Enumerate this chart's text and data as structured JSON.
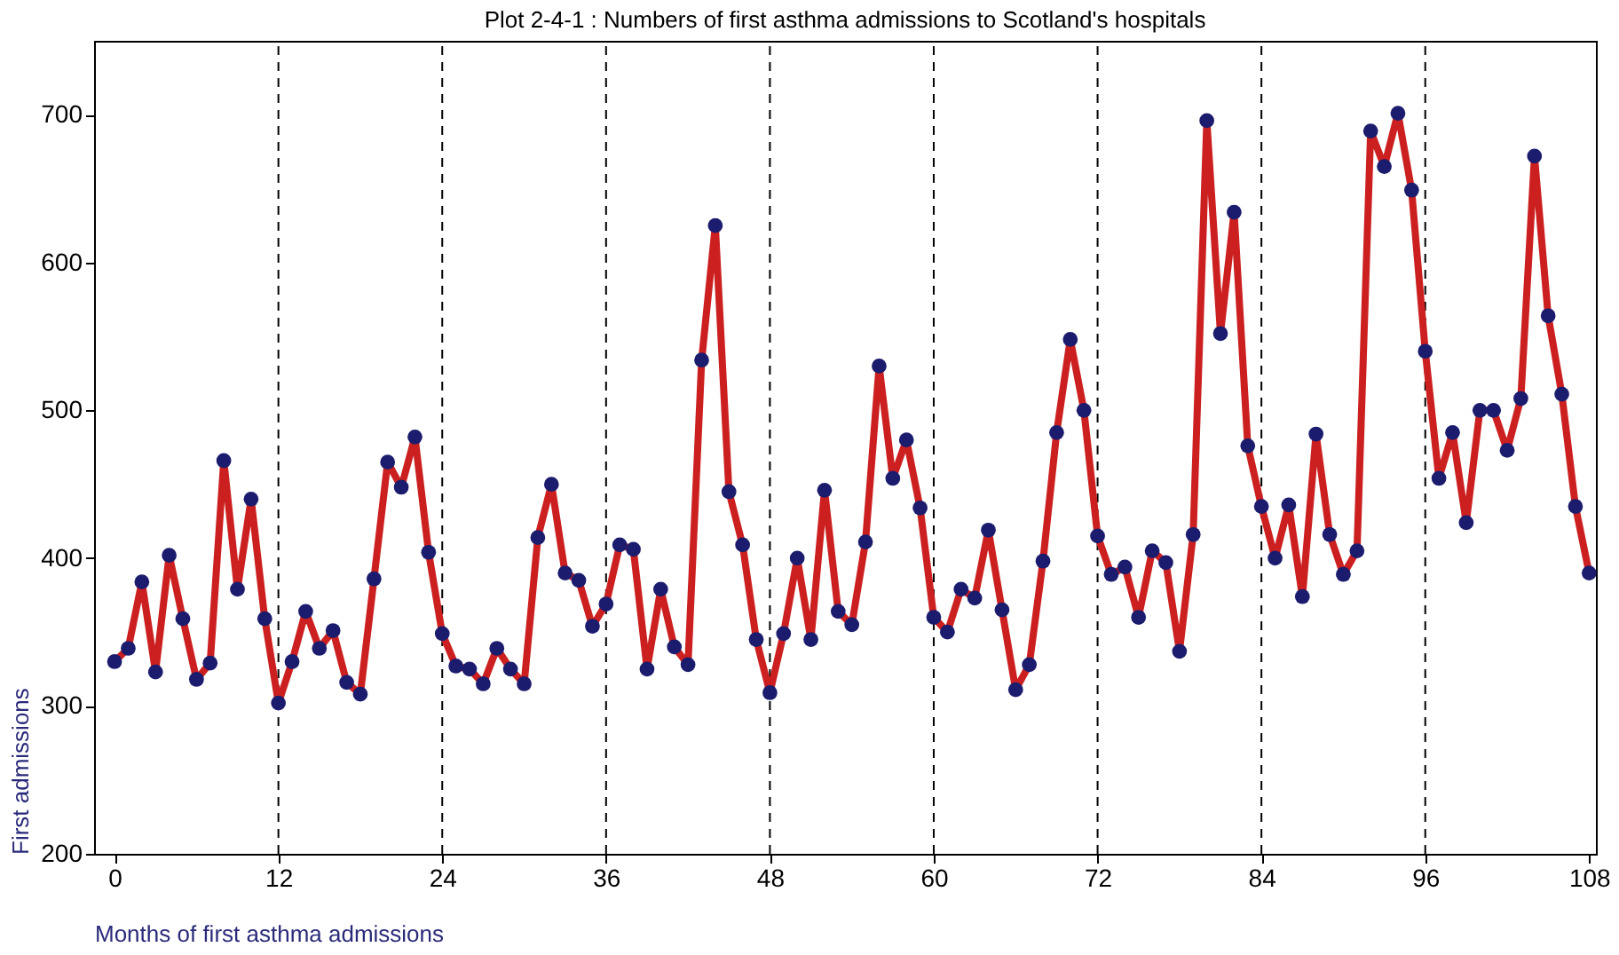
{
  "chart_data": {
    "type": "line",
    "title": "Plot 2-4-1 : Numbers of first asthma admissions to Scotland's hospitals",
    "xlabel": "Months of first asthma admissions",
    "ylabel": "First admissions",
    "x": [
      0,
      1,
      2,
      3,
      4,
      5,
      6,
      7,
      8,
      9,
      10,
      11,
      12,
      13,
      14,
      15,
      16,
      17,
      18,
      19,
      20,
      21,
      22,
      23,
      24,
      25,
      26,
      27,
      28,
      29,
      30,
      31,
      32,
      33,
      34,
      35,
      36,
      37,
      38,
      39,
      40,
      41,
      42,
      43,
      44,
      45,
      46,
      47,
      48,
      49,
      50,
      51,
      52,
      53,
      54,
      55,
      56,
      57,
      58,
      59,
      60,
      61,
      62,
      63,
      64,
      65,
      66,
      67,
      68,
      69,
      70,
      71,
      72,
      73,
      74,
      75,
      76,
      77,
      78,
      79,
      80,
      81,
      82,
      83,
      84,
      85,
      86,
      87,
      88,
      89,
      90,
      91,
      92,
      93,
      94,
      95,
      96,
      97,
      98,
      99,
      100,
      101,
      102,
      103,
      104,
      105,
      106,
      107,
      108
    ],
    "series": [
      {
        "color": "#cc2020",
        "marker": "none",
        "values": [
          330,
          339,
          384,
          323,
          402,
          359,
          318,
          329,
          466,
          379,
          440,
          359,
          302,
          330,
          364,
          339,
          351,
          316,
          308,
          386,
          465,
          448,
          482,
          404,
          349,
          327,
          325,
          315,
          339,
          325,
          315,
          414,
          450,
          390,
          385,
          354,
          369,
          409,
          406,
          325,
          379,
          340,
          328,
          534,
          625,
          445,
          409,
          345,
          309,
          349,
          400,
          345,
          446,
          364,
          355,
          411,
          530,
          454,
          480,
          434,
          360,
          350,
          379,
          373,
          419,
          365,
          311,
          328,
          398,
          485,
          548,
          500,
          415,
          389,
          394,
          360,
          405,
          397,
          337,
          416,
          696,
          552,
          634,
          476,
          435,
          400,
          436,
          374,
          484,
          416,
          389,
          405,
          689,
          665,
          701,
          649,
          540,
          454,
          485,
          424,
          500,
          500,
          473,
          508,
          672,
          564,
          511,
          435,
          390
        ]
      },
      {
        "type": "scatter",
        "color": "#1c1c6e",
        "values": [
          330,
          339,
          384,
          323,
          402,
          359,
          318,
          329,
          466,
          379,
          440,
          359,
          302,
          330,
          364,
          339,
          351,
          316,
          308,
          386,
          465,
          448,
          482,
          404,
          349,
          327,
          325,
          315,
          339,
          325,
          315,
          414,
          450,
          390,
          385,
          354,
          369,
          409,
          406,
          325,
          379,
          340,
          328,
          534,
          625,
          445,
          409,
          345,
          309,
          349,
          400,
          345,
          446,
          364,
          355,
          411,
          530,
          454,
          480,
          434,
          360,
          350,
          379,
          373,
          419,
          365,
          311,
          328,
          398,
          485,
          548,
          500,
          415,
          389,
          394,
          360,
          405,
          397,
          337,
          416,
          696,
          552,
          634,
          476,
          435,
          400,
          436,
          374,
          484,
          416,
          389,
          405,
          689,
          665,
          701,
          649,
          540,
          454,
          485,
          424,
          500,
          500,
          473,
          508,
          672,
          564,
          511,
          435,
          390
        ]
      }
    ],
    "xlim": [
      -1.5,
      108.5
    ],
    "xticks": [
      0,
      12,
      24,
      36,
      48,
      60,
      72,
      84,
      96,
      108
    ],
    "ylim": [
      200,
      750
    ],
    "yticks": [
      200,
      300,
      400,
      500,
      600,
      700
    ],
    "ref_lines": [
      {
        "axis": "x",
        "value": 12,
        "color": "#000000",
        "line_style": "dashed"
      },
      {
        "axis": "x",
        "value": 24,
        "color": "#000000",
        "line_style": "dashed"
      },
      {
        "axis": "x",
        "value": 36,
        "color": "#000000",
        "line_style": "dashed"
      },
      {
        "axis": "x",
        "value": 48,
        "color": "#000000",
        "line_style": "dashed"
      },
      {
        "axis": "x",
        "value": 60,
        "color": "#000000",
        "line_style": "dashed"
      },
      {
        "axis": "x",
        "value": 72,
        "color": "#000000",
        "line_style": "dashed"
      },
      {
        "axis": "x",
        "value": 84,
        "color": "#000000",
        "line_style": "dashed"
      },
      {
        "axis": "x",
        "value": 96,
        "color": "#000000",
        "line_style": "dashed"
      }
    ],
    "marker": "circle",
    "line_style": "solid",
    "grid": false
  }
}
